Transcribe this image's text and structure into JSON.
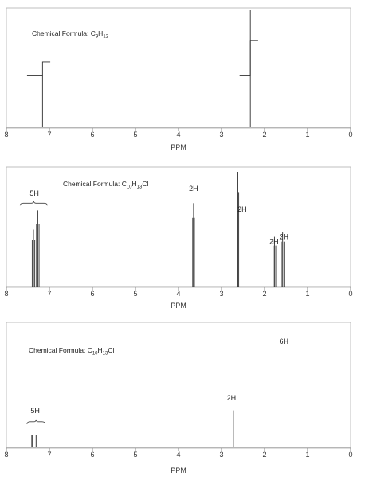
{
  "chart_data": [
    {
      "type": "nmr-spectrum",
      "xlabel": "PPM",
      "xlim": [
        8,
        0
      ],
      "x_reversed": true,
      "ticks": [
        "8",
        "7",
        "6",
        "5",
        "4",
        "3",
        "2",
        "1",
        "0"
      ],
      "formula": {
        "prefix": "Chemical Formula: ",
        "parts": [
          [
            "C",
            ""
          ],
          [
            "9",
            "sub"
          ],
          [
            "H",
            ""
          ],
          [
            "12",
            "sub"
          ]
        ]
      },
      "peaks": [
        {
          "ppm": 7.16,
          "height": 0.44,
          "lines": [
            7.16
          ]
        },
        {
          "ppm": 2.33,
          "height": 0.98,
          "lines": [
            2.33
          ]
        }
      ],
      "integrations": [
        {
          "ppm": 7.16,
          "x_from": 7.52,
          "x_to": 6.98,
          "y_low": 0.44,
          "y_high": 0.55
        },
        {
          "ppm": 2.33,
          "x_from": 2.58,
          "x_to": 2.15,
          "y_low": 0.44,
          "y_high": 0.73
        }
      ],
      "labels": []
    },
    {
      "type": "nmr-spectrum",
      "xlabel": "PPM",
      "xlim": [
        8,
        0
      ],
      "x_reversed": true,
      "ticks": [
        "8",
        "7",
        "6",
        "5",
        "4",
        "3",
        "2",
        "1",
        "0"
      ],
      "formula": {
        "prefix": "Chemical Formula: ",
        "parts": [
          [
            "C",
            ""
          ],
          [
            "10",
            "sub"
          ],
          [
            "H",
            ""
          ],
          [
            "13",
            "sub"
          ],
          [
            "Cl",
            ""
          ]
        ]
      },
      "peaks": [
        {
          "ppm": 7.37,
          "height": 0.48,
          "lines": [
            7.4,
            7.37,
            7.34
          ]
        },
        {
          "ppm": 7.27,
          "height": 0.64,
          "lines": [
            7.3,
            7.27,
            7.24
          ]
        },
        {
          "ppm": 3.65,
          "height": 0.7,
          "lines": [
            3.67,
            3.65,
            3.63
          ]
        },
        {
          "ppm": 2.62,
          "height": 0.96,
          "lines": [
            2.64,
            2.62,
            2.6
          ]
        },
        {
          "ppm": 1.77,
          "height": 0.42,
          "lines": [
            1.8,
            1.77,
            1.74
          ]
        },
        {
          "ppm": 1.58,
          "height": 0.46,
          "lines": [
            1.61,
            1.58,
            1.55
          ]
        }
      ],
      "integrations": [],
      "labels": [
        {
          "text": "5H",
          "ppm": 7.35,
          "y": 0.76,
          "brace": [
            7.68,
            7.05
          ],
          "brace_y": 0.7
        },
        {
          "text": "2H",
          "ppm": 3.65,
          "y": 0.8
        },
        {
          "text": "2H",
          "ppm": 2.52,
          "y": 0.63
        },
        {
          "text": "2H",
          "ppm": 1.78,
          "y": 0.36
        },
        {
          "text": "2H",
          "ppm": 1.55,
          "y": 0.4
        }
      ]
    },
    {
      "type": "nmr-spectrum",
      "xlabel": "PPM",
      "xlim": [
        8,
        0
      ],
      "x_reversed": true,
      "ticks": [
        "8",
        "7",
        "6",
        "5",
        "4",
        "3",
        "2",
        "1",
        "0"
      ],
      "formula": {
        "prefix": "Chemical Formula: ",
        "parts": [
          [
            "C",
            ""
          ],
          [
            "10",
            "sub"
          ],
          [
            "H",
            ""
          ],
          [
            "13",
            "sub"
          ],
          [
            "Cl",
            ""
          ]
        ]
      },
      "peaks": [
        {
          "ppm": 7.39,
          "height": 0.12,
          "lines": [
            7.41,
            7.39
          ]
        },
        {
          "ppm": 7.29,
          "height": 0.12,
          "lines": [
            7.31,
            7.29
          ]
        },
        {
          "ppm": 2.72,
          "height": 0.3,
          "lines": [
            2.72
          ]
        },
        {
          "ppm": 1.62,
          "height": 0.93,
          "lines": [
            1.62
          ]
        }
      ],
      "integrations": [],
      "labels": [
        {
          "text": "5H",
          "ppm": 7.33,
          "y": 0.28,
          "brace": [
            7.52,
            7.1
          ],
          "brace_y": 0.21
        },
        {
          "text": "2H",
          "ppm": 2.77,
          "y": 0.38
        },
        {
          "text": "6H",
          "ppm": 1.55,
          "y": 0.83
        }
      ]
    }
  ]
}
